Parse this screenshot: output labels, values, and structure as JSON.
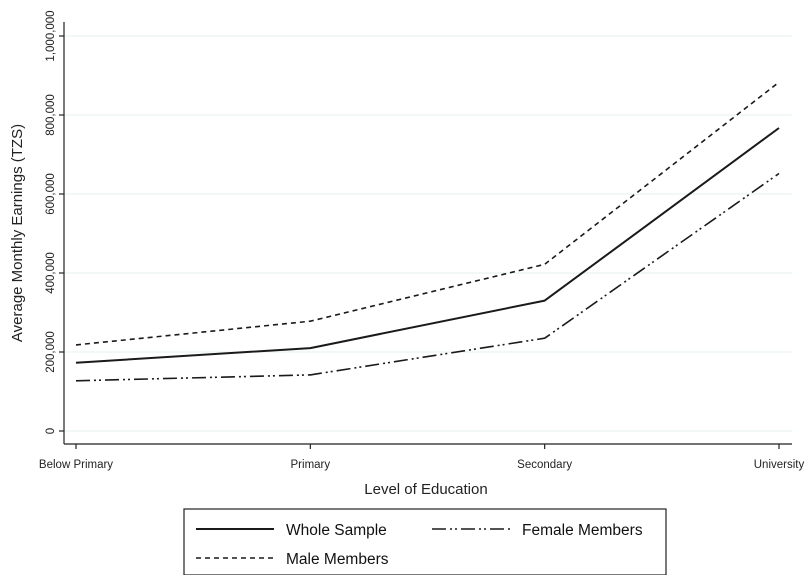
{
  "chart_data": {
    "type": "line",
    "xlabel": "Level of Education",
    "ylabel": "Average Monthly Earnings (TZS)",
    "categories": [
      "Below Primary",
      "Primary",
      "Secondary",
      "University"
    ],
    "ylim": [
      0,
      1000000
    ],
    "yticks": [
      0,
      200000,
      400000,
      600000,
      800000,
      1000000
    ],
    "ytick_labels": [
      "0",
      "200,000",
      "400,000",
      "600,000",
      "800,000",
      "1,000,000"
    ],
    "grid": true,
    "legend_position": "bottom",
    "series": [
      {
        "name": "Whole Sample",
        "values": [
          173000,
          210000,
          330000,
          767000
        ],
        "style": "solid",
        "color": "#1a1a1a"
      },
      {
        "name": "Male Members",
        "values": [
          218000,
          278000,
          422000,
          883000
        ],
        "style": "dashed",
        "color": "#1a1a1a"
      },
      {
        "name": "Female Members",
        "values": [
          127000,
          142000,
          235000,
          652000
        ],
        "style": "longdash-dot-dot",
        "color": "#1a1a1a"
      }
    ]
  }
}
